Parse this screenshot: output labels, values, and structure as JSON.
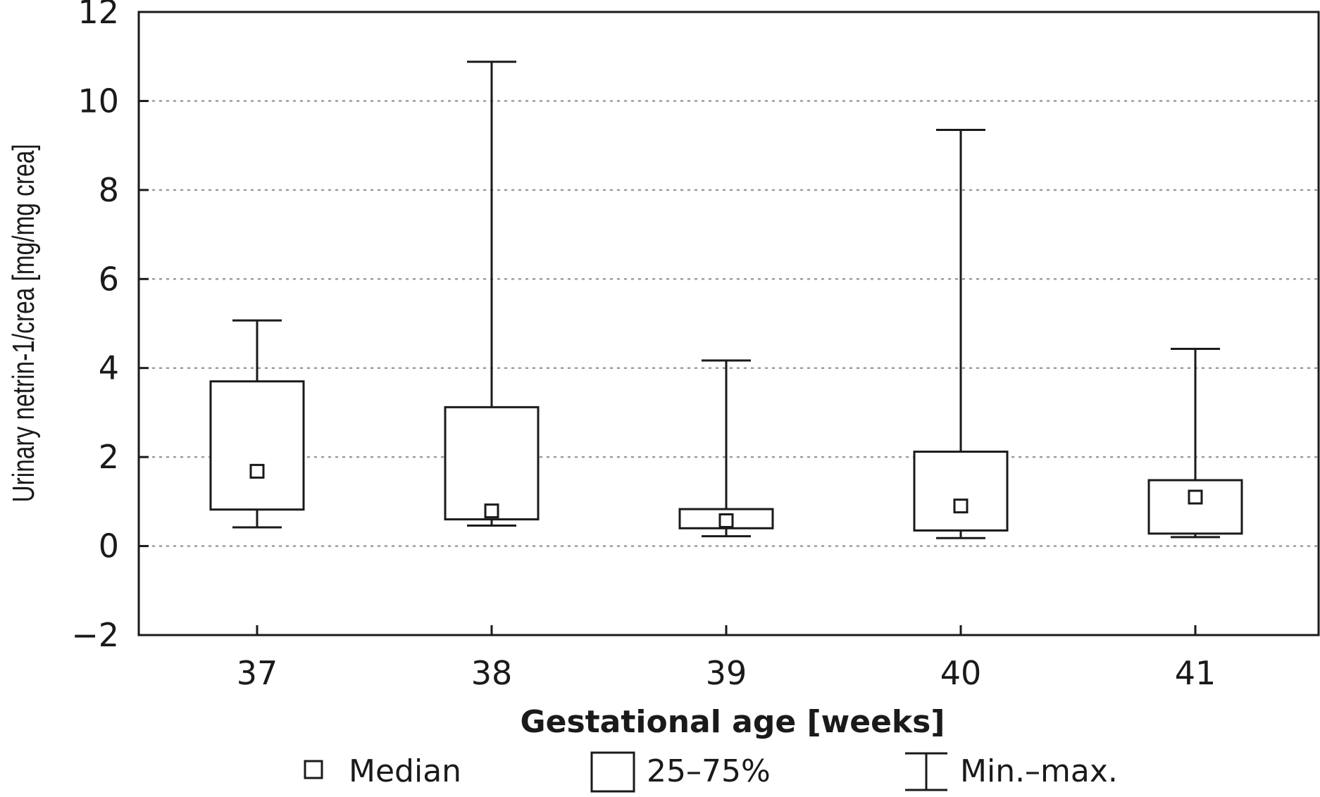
{
  "chart_data": {
    "type": "box",
    "categories": [
      "37",
      "38",
      "39",
      "40",
      "41"
    ],
    "boxes": [
      {
        "category": "37",
        "min": 0.42,
        "q1": 0.82,
        "median": 1.68,
        "q3": 3.7,
        "max": 5.07
      },
      {
        "category": "38",
        "min": 0.46,
        "q1": 0.6,
        "median": 0.79,
        "q3": 3.12,
        "max": 10.88
      },
      {
        "category": "39",
        "min": 0.22,
        "q1": 0.4,
        "median": 0.57,
        "q3": 0.83,
        "max": 4.17
      },
      {
        "category": "40",
        "min": 0.18,
        "q1": 0.35,
        "median": 0.9,
        "q3": 2.12,
        "max": 9.35
      },
      {
        "category": "41",
        "min": 0.2,
        "q1": 0.28,
        "median": 1.1,
        "q3": 1.48,
        "max": 4.43
      }
    ],
    "xlabel": "Gestational age [weeks]",
    "ylabel": "Urinary netrin-1/crea [mg/mg crea]",
    "ylim": [
      -2,
      12
    ],
    "yticks": [
      {
        "value": -2,
        "label": "−2"
      },
      {
        "value": 0,
        "label": "0"
      },
      {
        "value": 2,
        "label": "2"
      },
      {
        "value": 4,
        "label": "4"
      },
      {
        "value": 6,
        "label": "6"
      },
      {
        "value": 8,
        "label": "8"
      },
      {
        "value": 10,
        "label": "10"
      },
      {
        "value": 12,
        "label": "12"
      }
    ],
    "grid": "horizontal dotted",
    "legend": {
      "position": "bottom",
      "items": [
        {
          "symbol": "median",
          "label": "Median"
        },
        {
          "symbol": "box",
          "label": "25–75%"
        },
        {
          "symbol": "whisker",
          "label": "Min.–max."
        }
      ]
    }
  }
}
